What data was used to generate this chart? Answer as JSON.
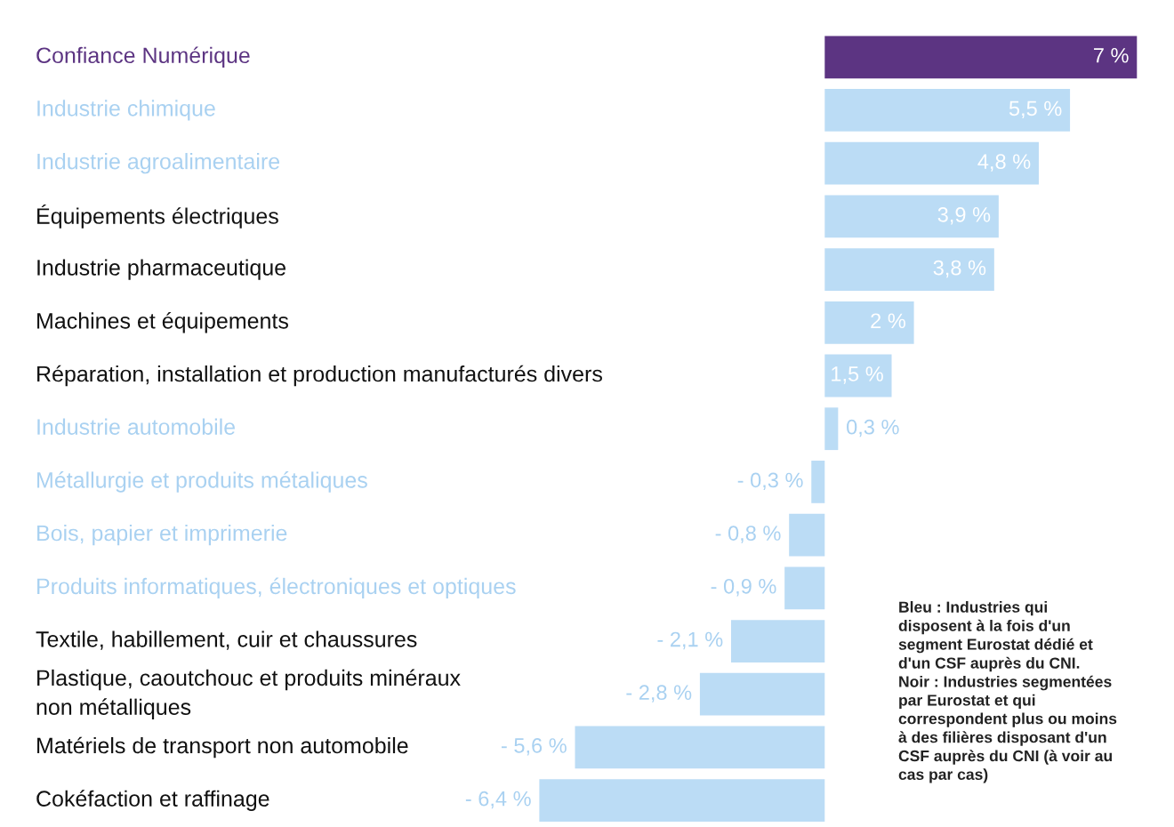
{
  "chart_data": {
    "type": "bar",
    "orientation": "horizontal",
    "categories": [
      "Confiance Numérique",
      "Industrie chimique",
      "Industrie agroalimentaire",
      "Équipements électriques",
      "Industrie pharmaceutique",
      "Machines et équipements",
      "Réparation, installation et production manufacturés divers",
      "Industrie automobile",
      "Métallurgie et produits métaliques",
      "Bois, papier et imprimerie",
      "Produits informatiques, électroniques et optiques",
      "Textile, habillement, cuir et chaussures",
      "Plastique, caoutchouc et produits minéraux\nnon métalliques",
      "Matériels de transport non automobile",
      "Cokéfaction et raffinage"
    ],
    "values": [
      7,
      5.5,
      4.8,
      3.9,
      3.8,
      2,
      1.5,
      0.3,
      -0.3,
      -0.8,
      -0.9,
      -2.1,
      -2.8,
      -5.6,
      -6.4
    ],
    "colors": [
      "#5c3482",
      "#bbdcf5",
      "#bbdcf5",
      "#bbdcf5",
      "#bbdcf5",
      "#bbdcf5",
      "#bbdcf5",
      "#bbdcf5",
      "#bbdcf5",
      "#bbdcf5",
      "#bbdcf5",
      "#bbdcf5",
      "#bbdcf5",
      "#bbdcf5",
      "#bbdcf5"
    ],
    "value_labels": [
      "7 %",
      "5,5 %",
      "4,8 %",
      "3,9 %",
      "3,8 %",
      "2 %",
      "1,5 %",
      "0,3 %",
      "- 0,3 %",
      "- 0,8 %",
      "- 0,9 %",
      "- 2,1 %",
      "- 2,8 %",
      "- 5,6 %",
      "- 6,4 %"
    ],
    "annotations": [
      "Bleu : Industries qui\ndisposent à la fois d'un\nsegment Eurostat dédié et\nd'un CSF auprès du CNI.\nNoir : Industries segmentées\npar Eurostat et qui\ncorrespondent plus ou moins\nà des filières disposant d'un\nCSF auprès du CNI (à voir au\ncas par cas)"
    ]
  }
}
